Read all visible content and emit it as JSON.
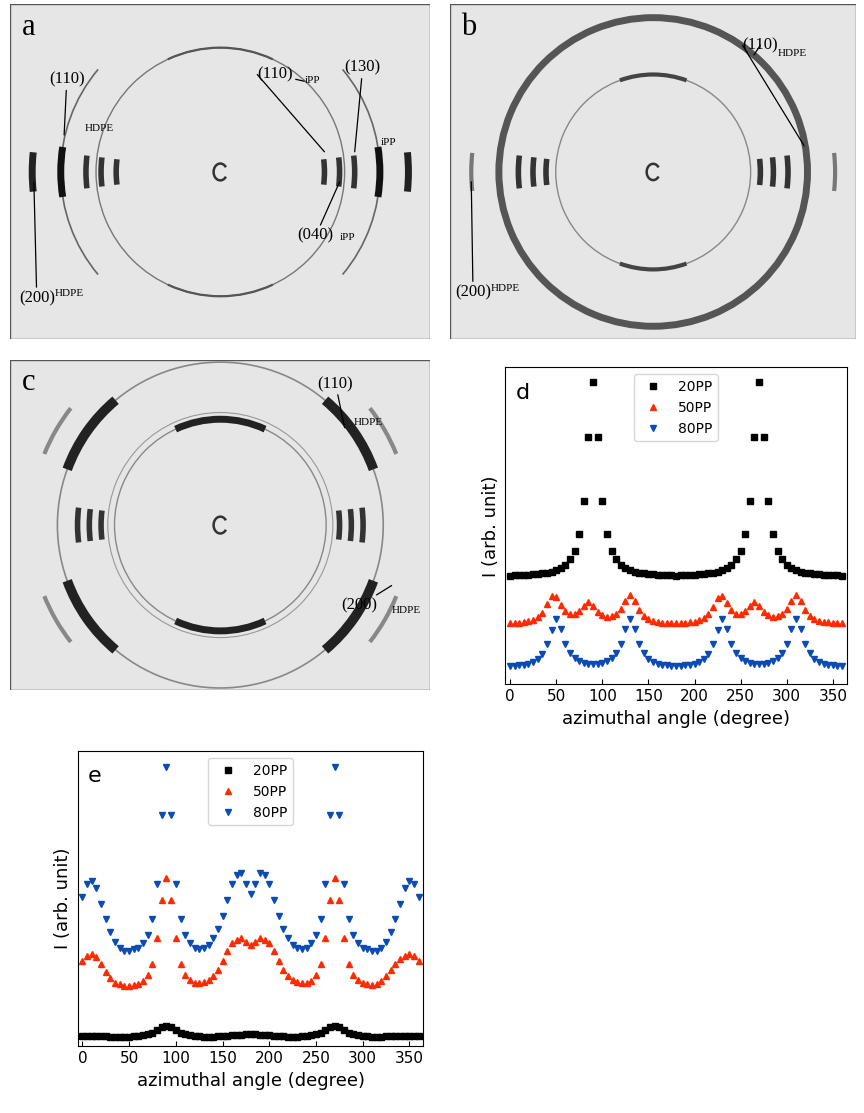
{
  "patterns": [
    {
      "label": "a",
      "annotations": [
        {
          "hkl": "(110)",
          "phase": "HDPE"
        },
        {
          "hkl": "(200)",
          "phase": "HDPE"
        },
        {
          "hkl": "(110)",
          "phase": "iPP"
        },
        {
          "hkl": "(130)",
          "phase": "iPP"
        },
        {
          "hkl": "(040)",
          "phase": "iPP"
        }
      ]
    },
    {
      "label": "b",
      "annotations": [
        {
          "hkl": "(110)",
          "phase": "HDPE"
        },
        {
          "hkl": "(200)",
          "phase": "HDPE"
        }
      ]
    },
    {
      "label": "c",
      "annotations": [
        {
          "hkl": "(110)",
          "phase": "HDPE"
        },
        {
          "hkl": "(200)",
          "phase": "HDPE"
        }
      ]
    }
  ],
  "chart_data": [
    {
      "type": "scatter",
      "panel_label": "d",
      "x_label": "azimuthal angle (degree)",
      "y_label": "I (arb. unit)",
      "x": [
        0,
        5,
        10,
        15,
        20,
        25,
        30,
        35,
        40,
        45,
        50,
        55,
        60,
        65,
        70,
        75,
        80,
        85,
        90,
        95,
        100,
        105,
        110,
        115,
        120,
        125,
        130,
        135,
        140,
        145,
        150,
        155,
        160,
        165,
        170,
        175,
        180,
        185,
        190,
        195,
        200,
        205,
        210,
        215,
        220,
        225,
        230,
        235,
        240,
        245,
        250,
        255,
        260,
        265,
        270,
        275,
        280,
        285,
        290,
        295,
        300,
        305,
        310,
        315,
        320,
        325,
        330,
        335,
        340,
        345,
        350,
        355,
        360
      ],
      "xlim": [
        -5,
        365
      ],
      "xticks": [
        0,
        50,
        100,
        150,
        200,
        250,
        300,
        350
      ],
      "ylim": [
        0.6,
        9.2
      ],
      "yticks": [],
      "tick_labels": "x",
      "legend": "upper center",
      "series": [
        {
          "name": "20PP",
          "color": "#000000",
          "marker": "square",
          "line_style": "none",
          "values": [
            3.55,
            3.56,
            3.56,
            3.57,
            3.58,
            3.59,
            3.6,
            3.61,
            3.63,
            3.66,
            3.7,
            3.76,
            3.85,
            3.99,
            4.23,
            4.67,
            5.57,
            7.31,
            8.8,
            7.31,
            5.57,
            4.67,
            4.23,
            3.99,
            3.85,
            3.76,
            3.7,
            3.66,
            3.63,
            3.61,
            3.6,
            3.59,
            3.58,
            3.57,
            3.56,
            3.56,
            3.55,
            3.56,
            3.56,
            3.57,
            3.58,
            3.59,
            3.6,
            3.61,
            3.63,
            3.66,
            3.7,
            3.76,
            3.85,
            3.99,
            4.23,
            4.67,
            5.57,
            7.31,
            8.8,
            7.31,
            5.57,
            4.67,
            4.23,
            3.99,
            3.85,
            3.76,
            3.7,
            3.66,
            3.63,
            3.61,
            3.6,
            3.59,
            3.58,
            3.57,
            3.56,
            3.56,
            3.55
          ]
        },
        {
          "name": "50PP",
          "color": "#ff2a00",
          "marker": "triangle_up",
          "line_style": "none",
          "values": [
            2.27,
            2.27,
            2.28,
            2.29,
            2.31,
            2.36,
            2.43,
            2.55,
            2.77,
            3.0,
            2.97,
            2.75,
            2.58,
            2.52,
            2.52,
            2.59,
            2.74,
            2.84,
            2.73,
            2.57,
            2.48,
            2.44,
            2.46,
            2.51,
            2.64,
            2.87,
            3.03,
            2.86,
            2.62,
            2.47,
            2.37,
            2.32,
            2.29,
            2.27,
            2.27,
            2.27,
            2.26,
            2.27,
            2.27,
            2.29,
            2.3,
            2.34,
            2.4,
            2.52,
            2.71,
            2.95,
            3.0,
            2.8,
            2.61,
            2.52,
            2.51,
            2.6,
            2.73,
            2.83,
            2.73,
            2.57,
            2.48,
            2.44,
            2.46,
            2.51,
            2.64,
            2.87,
            3.03,
            2.86,
            2.62,
            2.46,
            2.38,
            2.33,
            2.3,
            2.29,
            2.28,
            2.27,
            2.27
          ]
        },
        {
          "name": "80PP",
          "color": "#0a4bb4",
          "marker": "triangle_down",
          "line_style": "none",
          "values": [
            1.1,
            1.11,
            1.12,
            1.13,
            1.16,
            1.21,
            1.29,
            1.43,
            1.69,
            2.09,
            2.37,
            2.1,
            1.7,
            1.45,
            1.31,
            1.23,
            1.19,
            1.16,
            1.16,
            1.16,
            1.19,
            1.23,
            1.31,
            1.45,
            1.7,
            2.1,
            2.37,
            2.1,
            1.7,
            1.45,
            1.29,
            1.21,
            1.16,
            1.13,
            1.12,
            1.11,
            1.1,
            1.11,
            1.12,
            1.13,
            1.16,
            1.21,
            1.29,
            1.43,
            1.69,
            2.09,
            2.37,
            2.1,
            1.7,
            1.45,
            1.31,
            1.23,
            1.19,
            1.16,
            1.16,
            1.16,
            1.19,
            1.23,
            1.31,
            1.45,
            1.7,
            2.1,
            2.37,
            2.1,
            1.7,
            1.45,
            1.29,
            1.21,
            1.16,
            1.13,
            1.12,
            1.11,
            1.1
          ]
        }
      ]
    },
    {
      "type": "scatter",
      "panel_label": "e",
      "x_label": "azimuthal angle (degree)",
      "y_label": "I (arb. unit)",
      "x": [
        0,
        5,
        10,
        15,
        20,
        25,
        30,
        35,
        40,
        45,
        50,
        55,
        60,
        65,
        70,
        75,
        80,
        85,
        90,
        95,
        100,
        105,
        110,
        115,
        120,
        125,
        130,
        135,
        140,
        145,
        150,
        155,
        160,
        165,
        170,
        175,
        180,
        185,
        190,
        195,
        200,
        205,
        210,
        215,
        220,
        225,
        230,
        235,
        240,
        245,
        250,
        255,
        260,
        265,
        270,
        275,
        280,
        285,
        290,
        295,
        300,
        305,
        310,
        315,
        320,
        325,
        330,
        335,
        340,
        345,
        350,
        355,
        360
      ],
      "xlim": [
        -5,
        365
      ],
      "xticks": [
        0,
        50,
        100,
        150,
        200,
        250,
        300,
        350
      ],
      "ylim": [
        0,
        9.3
      ],
      "yticks": [],
      "tick_labels": "x",
      "legend": "upper center",
      "series": [
        {
          "name": "20PP",
          "color": "#000000",
          "marker": "square",
          "line_style": "none",
          "values": [
            0.32,
            0.32,
            0.32,
            0.31,
            0.31,
            0.31,
            0.3,
            0.3,
            0.3,
            0.3,
            0.3,
            0.31,
            0.32,
            0.34,
            0.37,
            0.42,
            0.5,
            0.6,
            0.65,
            0.6,
            0.5,
            0.42,
            0.37,
            0.34,
            0.32,
            0.31,
            0.3,
            0.3,
            0.3,
            0.31,
            0.32,
            0.33,
            0.34,
            0.35,
            0.36,
            0.37,
            0.38,
            0.37,
            0.36,
            0.35,
            0.34,
            0.33,
            0.32,
            0.31,
            0.3,
            0.3,
            0.3,
            0.31,
            0.32,
            0.34,
            0.37,
            0.42,
            0.5,
            0.6,
            0.65,
            0.6,
            0.5,
            0.42,
            0.37,
            0.34,
            0.32,
            0.31,
            0.3,
            0.3,
            0.3,
            0.31,
            0.31,
            0.31,
            0.32,
            0.32,
            0.32,
            0.32,
            0.32
          ]
        },
        {
          "name": "50PP",
          "color": "#ff2a00",
          "marker": "triangle_up",
          "line_style": "none",
          "values": [
            2.7,
            2.85,
            2.9,
            2.8,
            2.6,
            2.35,
            2.15,
            2.0,
            1.95,
            1.9,
            1.9,
            1.92,
            1.97,
            2.05,
            2.25,
            2.6,
            3.4,
            4.6,
            5.3,
            4.6,
            3.4,
            2.6,
            2.25,
            2.1,
            2.0,
            2.0,
            2.02,
            2.08,
            2.2,
            2.4,
            2.7,
            3.0,
            3.25,
            3.35,
            3.4,
            3.3,
            3.2,
            3.3,
            3.4,
            3.35,
            3.25,
            3.0,
            2.7,
            2.4,
            2.2,
            2.08,
            2.02,
            2.0,
            2.0,
            2.05,
            2.25,
            2.6,
            3.4,
            4.6,
            5.3,
            4.6,
            3.4,
            2.6,
            2.25,
            2.1,
            2.0,
            1.95,
            1.92,
            1.95,
            2.05,
            2.2,
            2.4,
            2.6,
            2.75,
            2.85,
            2.9,
            2.85,
            2.7
          ]
        },
        {
          "name": "80PP",
          "color": "#0a4bb4",
          "marker": "triangle_down",
          "line_style": "none",
          "values": [
            4.7,
            5.1,
            5.2,
            5.0,
            4.5,
            4.0,
            3.6,
            3.3,
            3.1,
            3.0,
            3.0,
            3.05,
            3.1,
            3.25,
            3.5,
            4.0,
            5.1,
            7.3,
            8.8,
            7.3,
            5.1,
            4.0,
            3.5,
            3.25,
            3.1,
            3.05,
            3.1,
            3.2,
            3.4,
            3.7,
            4.1,
            4.6,
            5.1,
            5.4,
            5.45,
            5.1,
            4.8,
            5.1,
            5.45,
            5.4,
            5.1,
            4.6,
            4.1,
            3.7,
            3.4,
            3.2,
            3.1,
            3.05,
            3.1,
            3.25,
            3.5,
            4.0,
            5.1,
            7.3,
            8.8,
            7.3,
            5.1,
            4.0,
            3.5,
            3.25,
            3.1,
            3.05,
            3.0,
            3.0,
            3.1,
            3.3,
            3.6,
            4.0,
            4.5,
            5.0,
            5.2,
            5.1,
            4.7
          ]
        }
      ]
    }
  ]
}
